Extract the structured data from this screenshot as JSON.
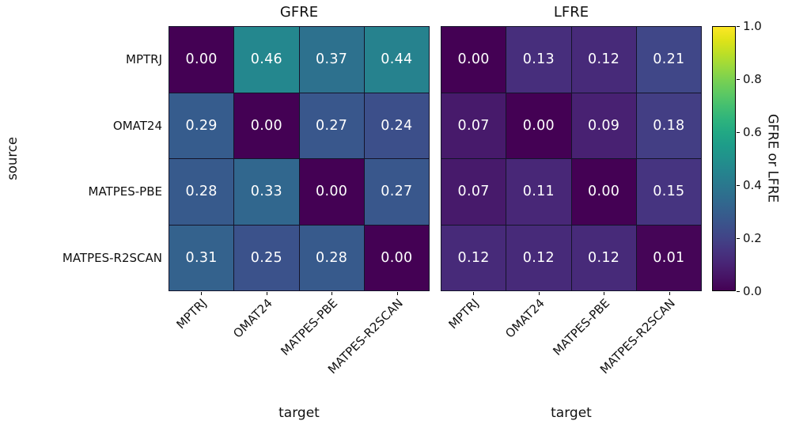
{
  "figure": {
    "ylabel": "source",
    "xlabel": "target",
    "colorbar": {
      "label": "GFRE or LFRE",
      "tick_labels": [
        "1.0",
        "0.8",
        "0.6",
        "0.4",
        "0.2",
        "0.0"
      ],
      "tick_values": [
        1.0,
        0.8,
        0.6,
        0.4,
        0.2,
        0.0
      ],
      "vmin": 0.0,
      "vmax": 1.0,
      "colormap": "viridis"
    },
    "cell_text_color": "#ffffff",
    "grid_line_color": "#14142a"
  },
  "chart_data": [
    {
      "type": "heatmap",
      "title": "GFRE",
      "rows": [
        "MPTRJ",
        "OMAT24",
        "MATPES-PBE",
        "MATPES-R2SCAN"
      ],
      "columns": [
        "MPTRJ",
        "OMAT24",
        "MATPES-PBE",
        "MATPES-R2SCAN"
      ],
      "values": [
        [
          0.0,
          0.46,
          0.37,
          0.44
        ],
        [
          0.29,
          0.0,
          0.27,
          0.24
        ],
        [
          0.28,
          0.33,
          0.0,
          0.27
        ],
        [
          0.31,
          0.25,
          0.28,
          0.0
        ]
      ],
      "xlabel": "target",
      "ylabel": "source",
      "colormap": "viridis",
      "vmin": 0.0,
      "vmax": 1.0,
      "value_format": "2-decimals"
    },
    {
      "type": "heatmap",
      "title": "LFRE",
      "rows": [
        "MPTRJ",
        "OMAT24",
        "MATPES-PBE",
        "MATPES-R2SCAN"
      ],
      "columns": [
        "MPTRJ",
        "OMAT24",
        "MATPES-PBE",
        "MATPES-R2SCAN"
      ],
      "values": [
        [
          0.0,
          0.13,
          0.12,
          0.21
        ],
        [
          0.07,
          0.0,
          0.09,
          0.18
        ],
        [
          0.07,
          0.11,
          0.0,
          0.15
        ],
        [
          0.12,
          0.12,
          0.12,
          0.01
        ]
      ],
      "xlabel": "target",
      "ylabel": "source",
      "colormap": "viridis",
      "vmin": 0.0,
      "vmax": 1.0,
      "value_format": "2-decimals"
    }
  ]
}
